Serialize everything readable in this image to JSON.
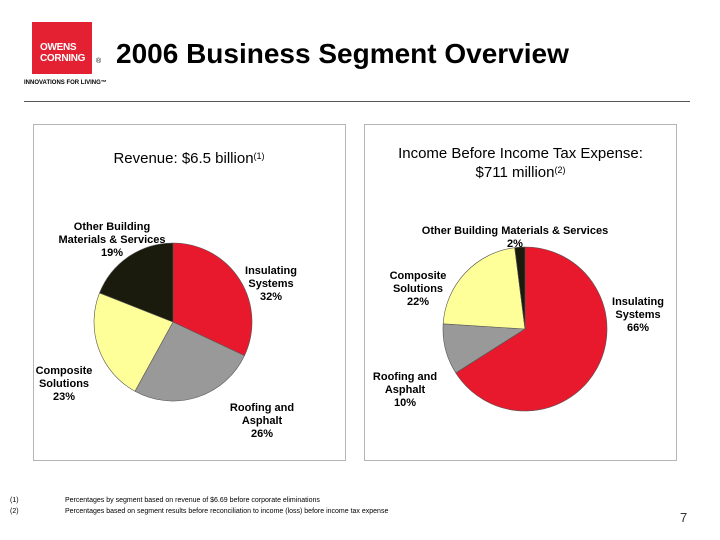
{
  "logo": {
    "line1": "OWENS",
    "line2": "CORNING",
    "registered": "®",
    "tagline": "INNOVATIONS FOR LIVING™",
    "brand_color": "#e32132"
  },
  "slide": {
    "title": "2006 Business Segment Overview",
    "page_number": "7"
  },
  "chart_data": [
    {
      "type": "pie",
      "title": "Revenue: $6.5 billion",
      "title_note": "(1)",
      "title_line2": "",
      "slices": [
        {
          "name": "Insulating Systems",
          "lines": [
            "Insulating",
            "Systems",
            "32%"
          ],
          "value": 32,
          "color": "#e8192d"
        },
        {
          "name": "Roofing and Asphalt",
          "lines": [
            "Roofing and",
            "Asphalt",
            "26%"
          ],
          "value": 26,
          "color": "#999999"
        },
        {
          "name": "Composite Solutions",
          "lines": [
            "Composite",
            "Solutions",
            "23%"
          ],
          "value": 23,
          "color": "#ffff99"
        },
        {
          "name": "Other Building Materials & Services",
          "lines": [
            "Other Building",
            "Materials & Services",
            "19%"
          ],
          "value": 19,
          "color": "#1a1a0d"
        }
      ]
    },
    {
      "type": "pie",
      "title": "Income Before Income Tax Expense:",
      "title_line2": "$711 million",
      "title_note": "(2)",
      "slices": [
        {
          "name": "Insulating Systems",
          "lines": [
            "Insulating",
            "Systems",
            "66%"
          ],
          "value": 66,
          "color": "#e8192d"
        },
        {
          "name": "Roofing and Asphalt",
          "lines": [
            "Roofing and",
            "Asphalt",
            "10%"
          ],
          "value": 10,
          "color": "#999999"
        },
        {
          "name": "Composite Solutions",
          "lines": [
            "Composite",
            "Solutions",
            "22%"
          ],
          "value": 22,
          "color": "#ffff99"
        },
        {
          "name": "Other Building Materials & Services",
          "lines": [
            "Other Building Materials & Services",
            "2%"
          ],
          "value": 2,
          "color": "#1a1a0d"
        }
      ]
    }
  ],
  "footnotes": [
    {
      "num": "(1)",
      "text": "Percentages by segment based on revenue of $6.69 before corporate eliminations"
    },
    {
      "num": "(2)",
      "text": "Percentages based on segment results before reconciliation to income (loss) before income tax expense"
    }
  ]
}
